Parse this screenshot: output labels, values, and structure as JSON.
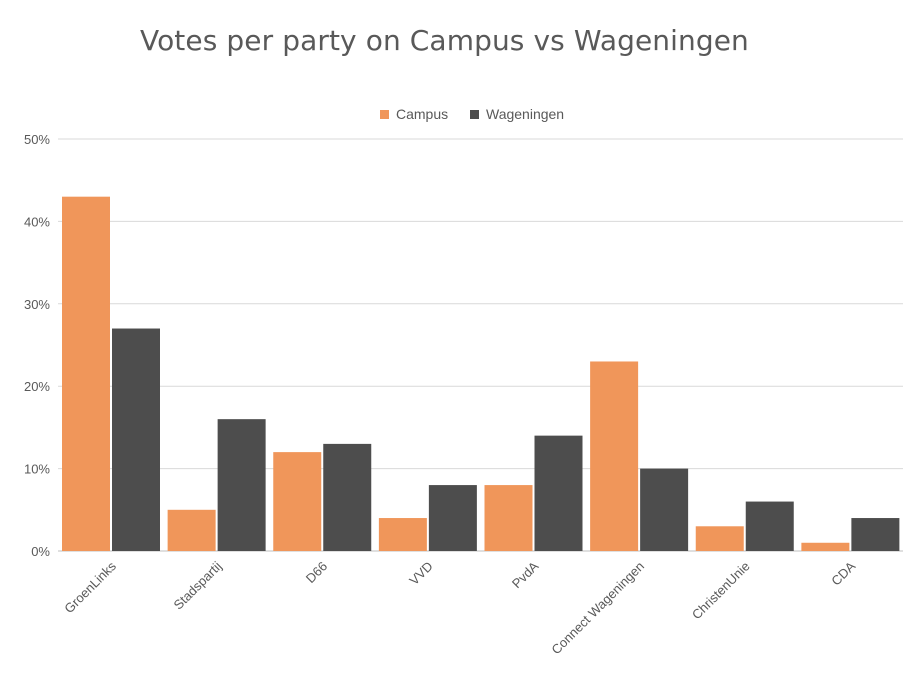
{
  "title": "Votes per party on Campus vs Wageningen",
  "colors": {
    "campus": "#F0965A",
    "wageningen": "#4D4D4D",
    "grid": "#D9D9D9",
    "axis": "#BFBFBF"
  },
  "chart_data": {
    "type": "bar",
    "title": "Votes per party on Campus vs Wageningen",
    "categories": [
      "GroenLinks",
      "Stadspartij",
      "D66",
      "VVD",
      "PvdA",
      "Connect Wageningen",
      "ChristenUnie",
      "CDA"
    ],
    "series": [
      {
        "name": "Campus",
        "values": [
          43,
          5,
          12,
          4,
          8,
          23,
          3,
          1
        ]
      },
      {
        "name": "Wageningen",
        "values": [
          27,
          16,
          13,
          8,
          14,
          10,
          6,
          4
        ]
      }
    ],
    "ylim": [
      0,
      50
    ],
    "yticks": [
      0,
      10,
      20,
      30,
      40,
      50
    ],
    "ytick_labels": [
      "0%",
      "10%",
      "20%",
      "30%",
      "40%",
      "50%"
    ],
    "legend_position": "top",
    "grid": true
  }
}
